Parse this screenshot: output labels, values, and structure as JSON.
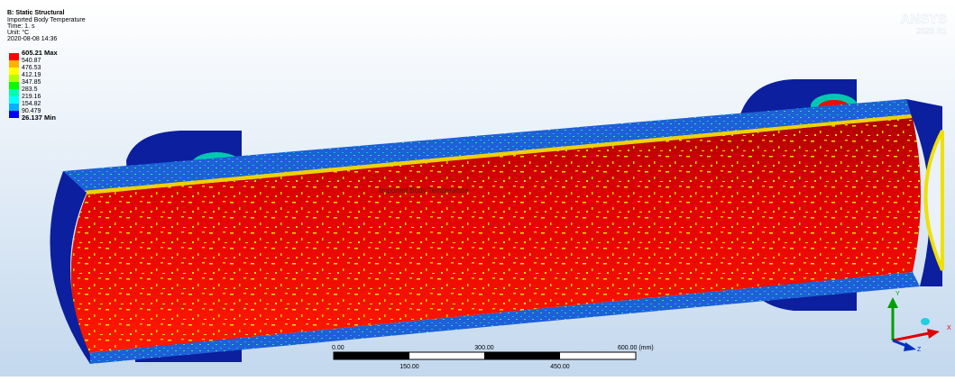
{
  "header": {
    "title": "B: Static Structural",
    "lines": [
      "Imported Body Temperature",
      "Time: 1. s",
      "Unit: °C",
      "2020-08-08 14:36"
    ]
  },
  "legend": {
    "labels": [
      "605.21 Max",
      "540.87",
      "476.53",
      "412.19",
      "347.85",
      "283.5",
      "219.16",
      "154.82",
      "90.479",
      "26.137 Min"
    ],
    "colors": [
      "#ff0000",
      "#ffb200",
      "#ffff00",
      "#b2ff00",
      "#00ff00",
      "#00ffb2",
      "#00ffff",
      "#00b2ff",
      "#0000ff"
    ]
  },
  "probe_label": "Imported Body Temperature",
  "scale_bar": {
    "top_labels": [
      "0.00",
      "300.00",
      "600.00 (mm)"
    ],
    "bottom_labels": [
      "150.00",
      "450.00"
    ]
  },
  "logo": {
    "name": "ANSYS",
    "version": "2020",
    "release": "R1"
  },
  "triad": {
    "y": "Y",
    "x": "X",
    "z": "Z"
  }
}
